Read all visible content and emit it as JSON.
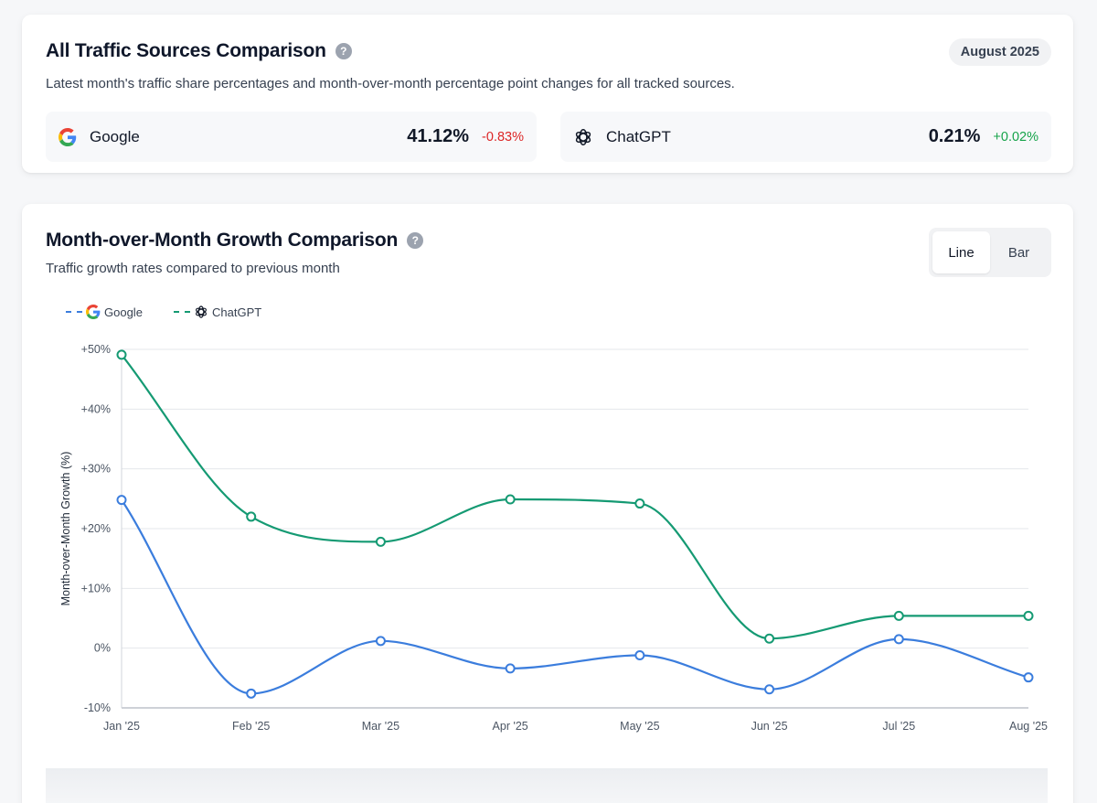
{
  "overview": {
    "title": "All Traffic Sources Comparison",
    "help_glyph": "?",
    "date_pill": "August 2025",
    "description": "Latest month's traffic share percentages and month-over-month percentage point changes for all tracked sources.",
    "sources": [
      {
        "name": "Google",
        "icon": "google-g-icon",
        "share": "41.12%",
        "change": "-0.83%",
        "direction": "negative"
      },
      {
        "name": "ChatGPT",
        "icon": "openai-knot-icon",
        "share": "0.21%",
        "change": "+0.02%",
        "direction": "positive"
      }
    ]
  },
  "growth": {
    "title": "Month-over-Month Growth Comparison",
    "help_glyph": "?",
    "subtitle": "Traffic growth rates compared to previous month",
    "toggle": {
      "options": [
        "Line",
        "Bar"
      ],
      "selected": "Line"
    }
  },
  "chart_data": {
    "type": "line",
    "title": "Month-over-Month Growth Comparison",
    "xlabel": "",
    "ylabel": "Month-over-Month Growth (%)",
    "categories": [
      "Jan '25",
      "Feb '25",
      "Mar '25",
      "Apr '25",
      "May '25",
      "Jun '25",
      "Jul '25",
      "Aug '25"
    ],
    "ylim": [
      -10,
      50
    ],
    "yticks": [
      -10,
      0,
      10,
      20,
      30,
      40,
      50
    ],
    "ytick_labels": [
      "-10%",
      "0%",
      "+10%",
      "+20%",
      "+30%",
      "+40%",
      "+50%"
    ],
    "grid": true,
    "legend_position": "top-left",
    "series": [
      {
        "name": "Google",
        "color": "#3b7ddd",
        "values": [
          24.8,
          -7.6,
          1.2,
          -3.4,
          -1.2,
          -6.9,
          1.5,
          -4.9
        ]
      },
      {
        "name": "ChatGPT",
        "color": "#159a73",
        "values": [
          49.1,
          22.0,
          17.8,
          24.9,
          24.2,
          1.6,
          5.4,
          5.4
        ]
      }
    ]
  }
}
